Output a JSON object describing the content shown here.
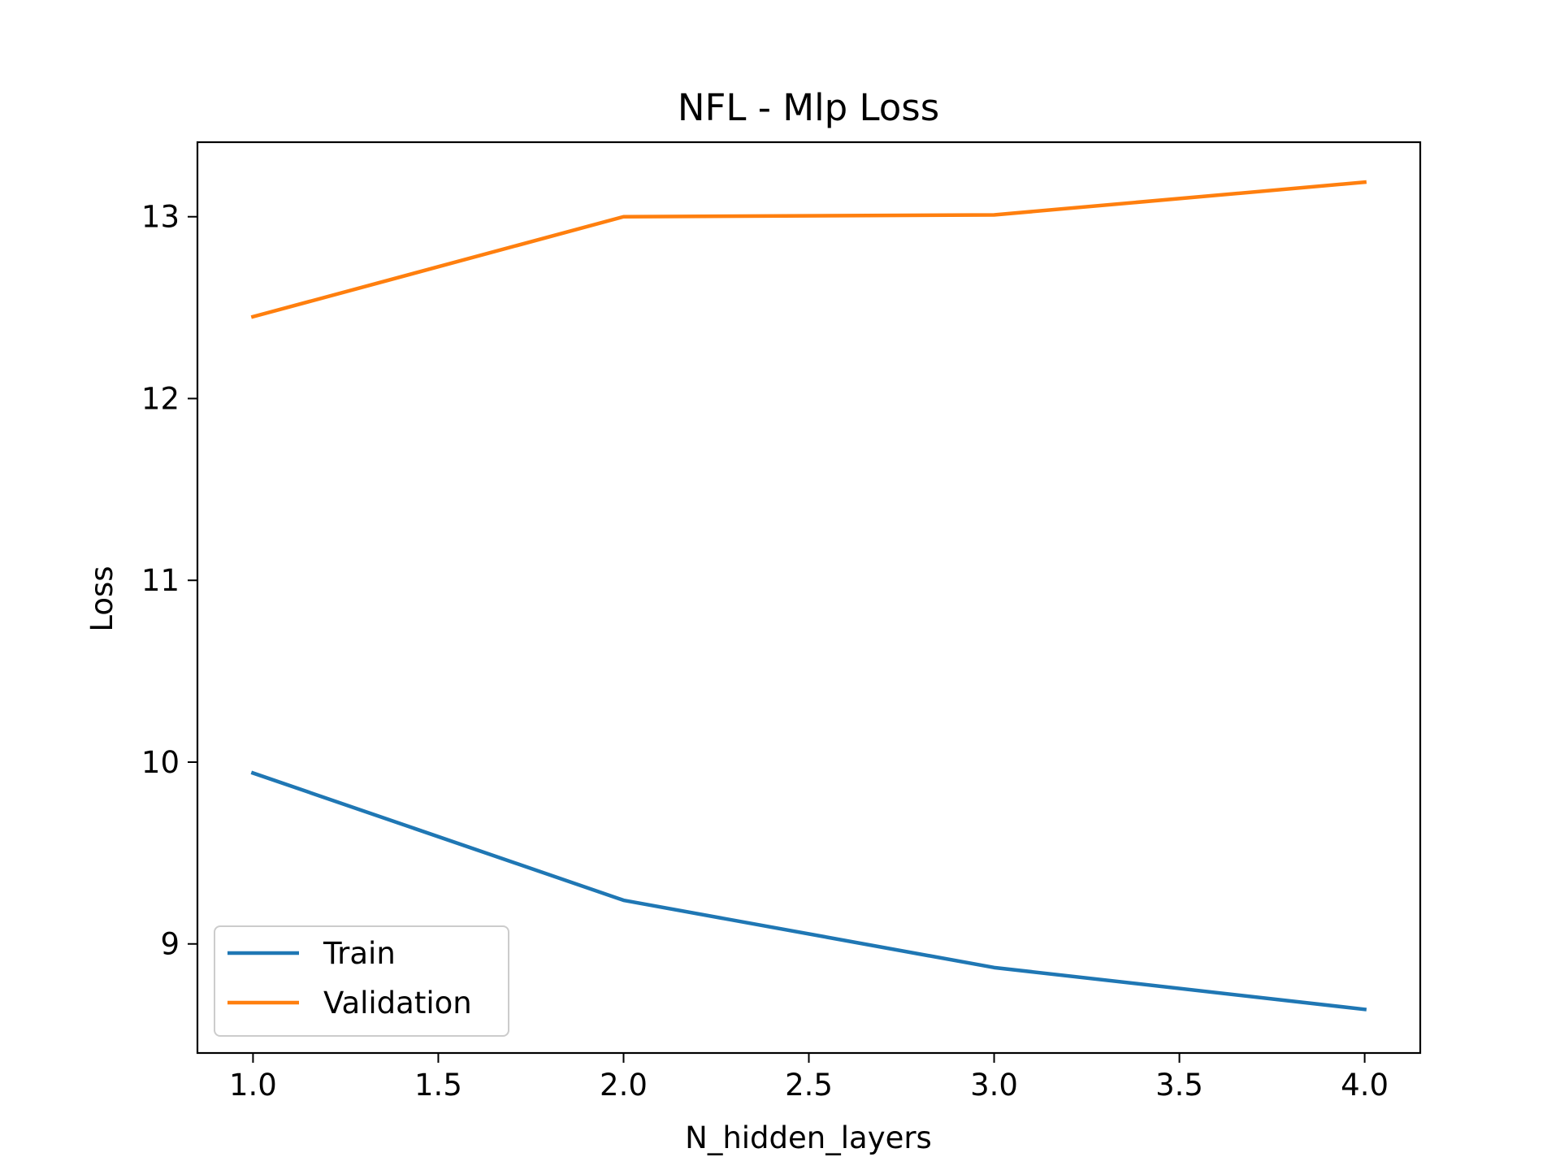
{
  "chart_data": {
    "type": "line",
    "title": "NFL - Mlp Loss",
    "xlabel": "N_hidden_layers",
    "ylabel": "Loss",
    "x": [
      1.0,
      2.0,
      3.0,
      4.0
    ],
    "xlim": [
      0.85,
      4.15
    ],
    "ylim": [
      8.4,
      13.41
    ],
    "xticks": [
      1.0,
      1.5,
      2.0,
      2.5,
      3.0,
      3.5,
      4.0
    ],
    "xtick_labels": [
      "1.0",
      "1.5",
      "2.0",
      "2.5",
      "3.0",
      "3.5",
      "4.0"
    ],
    "yticks": [
      9,
      10,
      11,
      12,
      13
    ],
    "ytick_labels": [
      "9",
      "10",
      "11",
      "12",
      "13"
    ],
    "grid": false,
    "legend_position": "lower-left",
    "series": [
      {
        "name": "Train",
        "color": "#1f77b4",
        "values": [
          9.94,
          9.24,
          8.87,
          8.64
        ]
      },
      {
        "name": "Validation",
        "color": "#ff7f0e",
        "values": [
          12.45,
          13.0,
          13.01,
          13.19
        ]
      }
    ]
  }
}
